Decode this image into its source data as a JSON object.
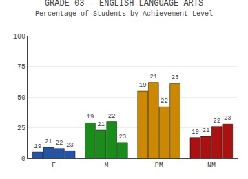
{
  "chart_data": {
    "type": "bar",
    "title": "GRADE 03 - ENGLISH LANGUAGE ARTS",
    "subtitle": "Percentage of Students by Achievement Level",
    "categories": [
      "E",
      "M",
      "PM",
      "NM"
    ],
    "series": [
      {
        "name": "19",
        "values": [
          5,
          29,
          55,
          17
        ],
        "colors": [
          "#2255aa",
          "#1a8c1a",
          "#cc8800",
          "#aa1111"
        ]
      },
      {
        "name": "21",
        "values": [
          9,
          23,
          62,
          18
        ],
        "colors": [
          "#2255aa",
          "#1a8c1a",
          "#cc8800",
          "#aa1111"
        ]
      },
      {
        "name": "22",
        "values": [
          8,
          30,
          42,
          26
        ],
        "colors": [
          "#2255aa",
          "#1a8c1a",
          "#cc8800",
          "#aa1111"
        ]
      },
      {
        "name": "23",
        "values": [
          6,
          13,
          61,
          28
        ],
        "colors": [
          "#2255aa",
          "#1a8c1a",
          "#cc8800",
          "#aa1111"
        ]
      }
    ],
    "ylim": [
      0,
      100
    ],
    "yticks": [
      0,
      25,
      50,
      75,
      100
    ],
    "grid": true
  }
}
